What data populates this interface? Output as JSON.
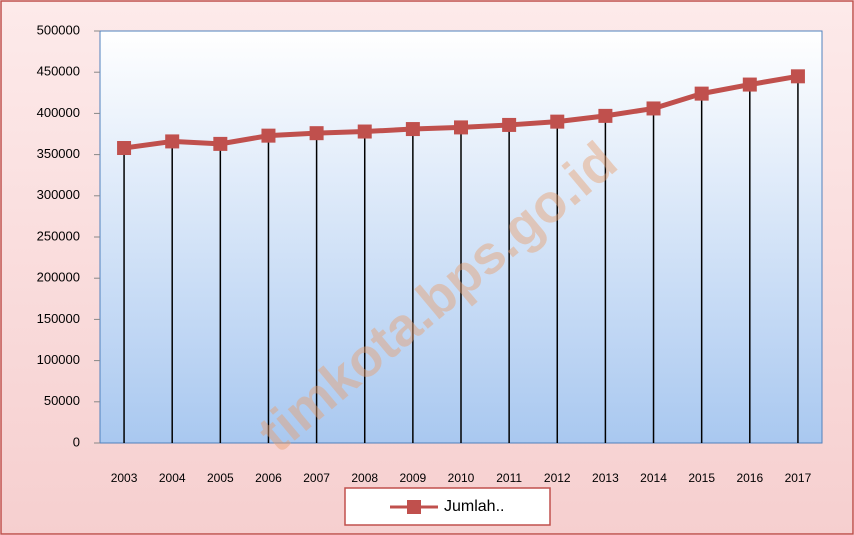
{
  "chart_data": {
    "type": "line",
    "categories": [
      "2003",
      "2004",
      "2005",
      "2006",
      "2007",
      "2008",
      "2009",
      "2010",
      "2011",
      "2012",
      "2013",
      "2014",
      "2015",
      "2016",
      "2017"
    ],
    "series": [
      {
        "name": "Jumlah..",
        "color": "#c0504d",
        "values": [
          358000,
          366000,
          363000,
          373000,
          376000,
          378000,
          381000,
          383000,
          386000,
          390000,
          397000,
          406000,
          424000,
          435000,
          445000
        ]
      }
    ],
    "ylim": [
      0,
      500000
    ],
    "yticks": [
      0,
      50000,
      100000,
      150000,
      200000,
      250000,
      300000,
      350000,
      400000,
      450000,
      500000
    ],
    "drop_lines": true,
    "legend": "bottom",
    "watermark": "timkota.bps.go.id"
  }
}
